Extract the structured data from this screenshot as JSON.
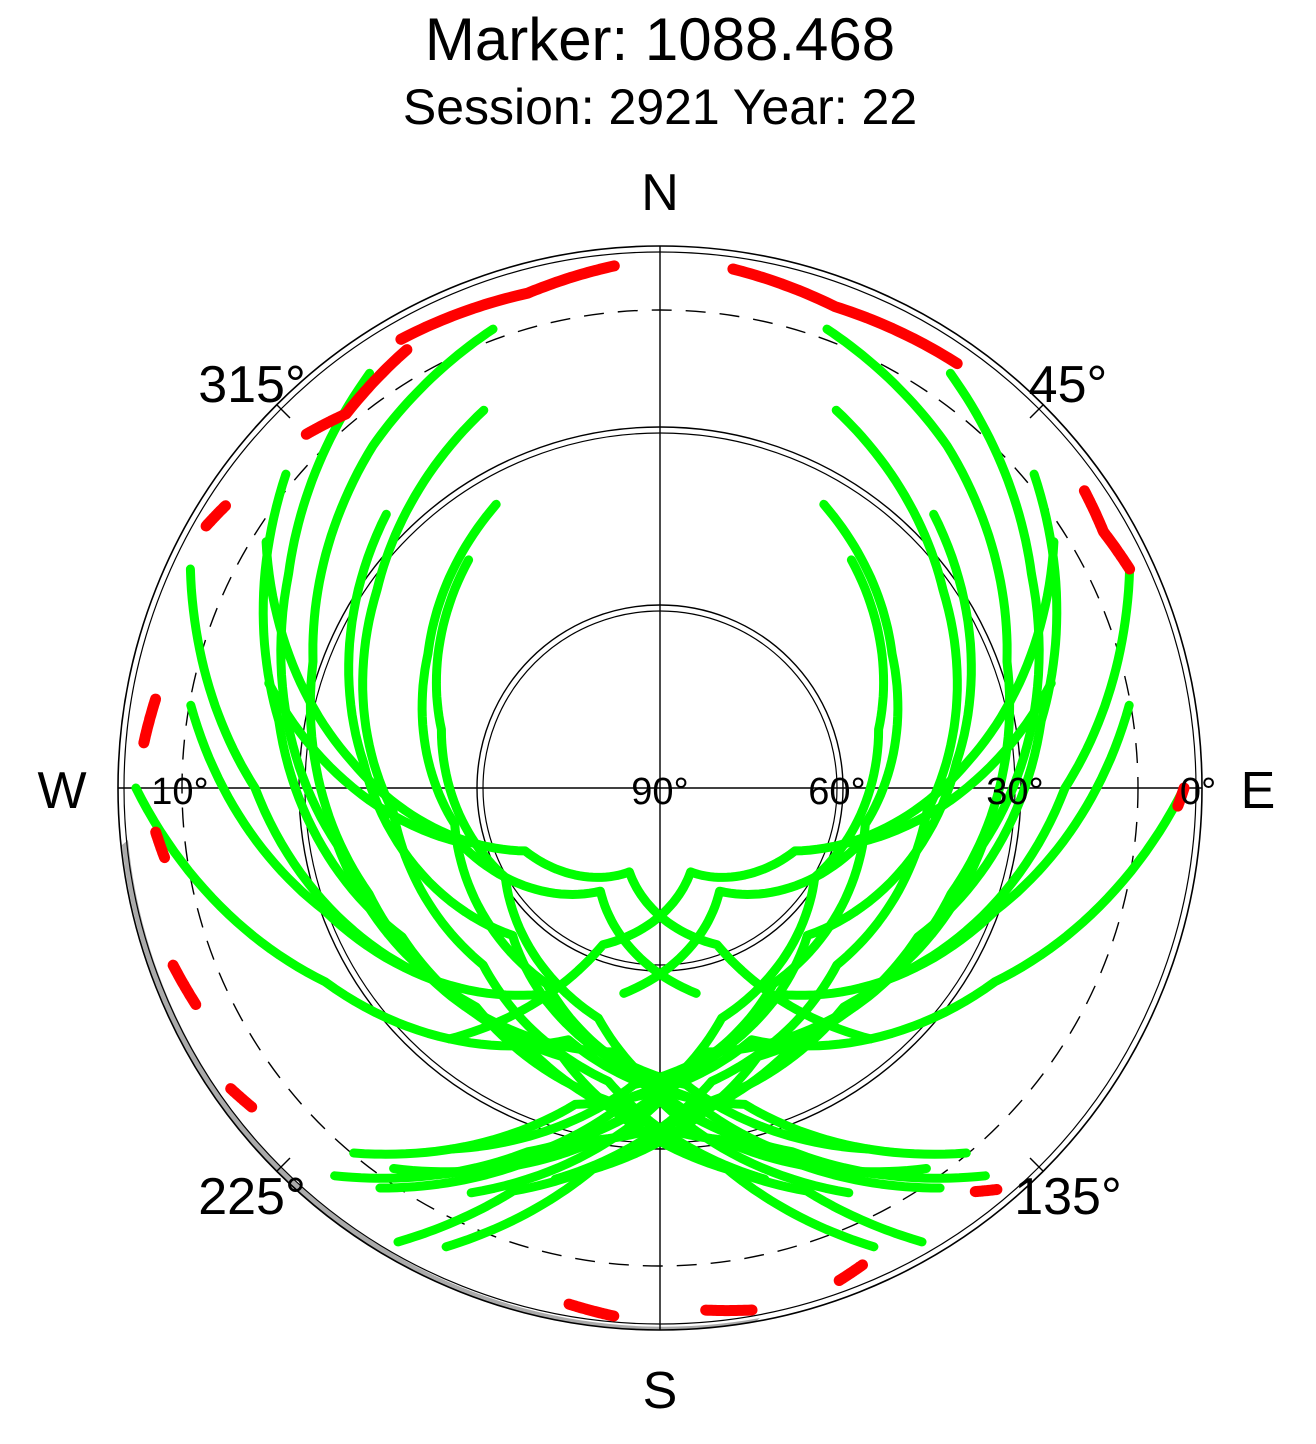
{
  "title": "Marker: 1088.468",
  "subtitle": "Session: 2921 Year: 22",
  "colors": {
    "track_ok": "#00ff00",
    "track_flagged": "#ff0000",
    "grid": "#000000",
    "horizon_mask": "#aaaaaa"
  },
  "chart_data": {
    "type": "scatter",
    "projection": "polar-skyplot",
    "compass_labels": {
      "north": "N",
      "south": "S",
      "west": "W",
      "east": "E"
    },
    "azimuth_labels": [
      "45°",
      "135°",
      "225°",
      "315°"
    ],
    "elevation_labels": [
      "0°",
      "10°",
      "30°",
      "60°",
      "90°"
    ],
    "elevation_rings_deg": [
      0,
      30,
      60
    ],
    "elevation_cutoff_deg": 10,
    "series": [
      {
        "color_key": "track_ok",
        "tracks": [
          [
            [
              20,
              8
            ],
            [
              40,
              15
            ],
            [
              70,
              28
            ],
            [
              110,
              38
            ],
            [
              150,
              42
            ],
            [
              190,
              30
            ],
            [
              215,
              12
            ]
          ],
          [
            [
              35,
              5
            ],
            [
              60,
              18
            ],
            [
              100,
              35
            ],
            [
              140,
              42
            ],
            [
              175,
              36
            ],
            [
              200,
              18
            ],
            [
              210,
              2
            ]
          ],
          [
            [
              50,
              8
            ],
            [
              80,
              25
            ],
            [
              120,
              40
            ],
            [
              160,
              42
            ],
            [
              190,
              25
            ],
            [
              205,
              5
            ]
          ],
          [
            [
              25,
              20
            ],
            [
              55,
              32
            ],
            [
              95,
              45
            ],
            [
              135,
              48
            ],
            [
              170,
              40
            ],
            [
              195,
              22
            ]
          ],
          [
            [
              65,
              3
            ],
            [
              90,
              22
            ],
            [
              130,
              40
            ],
            [
              170,
              45
            ],
            [
              200,
              25
            ],
            [
              220,
              5
            ]
          ],
          [
            [
              30,
              35
            ],
            [
              60,
              45
            ],
            [
              100,
              55
            ],
            [
              150,
              52
            ],
            [
              185,
              38
            ],
            [
              210,
              15
            ]
          ],
          [
            [
              40,
              40
            ],
            [
              75,
              52
            ],
            [
              120,
              60
            ],
            [
              165,
              50
            ],
            [
              195,
              28
            ],
            [
              215,
              8
            ]
          ],
          [
            [
              45,
              25
            ],
            [
              85,
              40
            ],
            [
              135,
              55
            ],
            [
              175,
              42
            ],
            [
              205,
              15
            ]
          ],
          [
            [
              80,
              10
            ],
            [
              110,
              30
            ],
            [
              150,
              50
            ],
            [
              185,
              40
            ],
            [
              210,
              20
            ]
          ],
          [
            [
              90,
              2
            ],
            [
              120,
              25
            ],
            [
              160,
              45
            ],
            [
              195,
              35
            ],
            [
              220,
              10
            ]
          ],
          [
            [
              340,
              8
            ],
            [
              320,
              15
            ],
            [
              290,
              28
            ],
            [
              250,
              38
            ],
            [
              210,
              42
            ],
            [
              170,
              30
            ],
            [
              145,
              12
            ]
          ],
          [
            [
              325,
              5
            ],
            [
              300,
              18
            ],
            [
              260,
              35
            ],
            [
              220,
              42
            ],
            [
              185,
              36
            ],
            [
              160,
              18
            ],
            [
              150,
              2
            ]
          ],
          [
            [
              310,
              8
            ],
            [
              280,
              25
            ],
            [
              240,
              40
            ],
            [
              200,
              42
            ],
            [
              170,
              25
            ],
            [
              155,
              5
            ]
          ],
          [
            [
              335,
              20
            ],
            [
              305,
              32
            ],
            [
              265,
              45
            ],
            [
              225,
              48
            ],
            [
              190,
              40
            ],
            [
              165,
              22
            ]
          ],
          [
            [
              295,
              3
            ],
            [
              270,
              22
            ],
            [
              230,
              40
            ],
            [
              190,
              45
            ],
            [
              160,
              25
            ],
            [
              140,
              5
            ]
          ],
          [
            [
              330,
              35
            ],
            [
              300,
              45
            ],
            [
              260,
              55
            ],
            [
              210,
              52
            ],
            [
              175,
              38
            ],
            [
              150,
              15
            ]
          ],
          [
            [
              320,
              40
            ],
            [
              285,
              52
            ],
            [
              240,
              60
            ],
            [
              195,
              50
            ],
            [
              165,
              28
            ],
            [
              145,
              8
            ]
          ],
          [
            [
              315,
              25
            ],
            [
              275,
              40
            ],
            [
              225,
              55
            ],
            [
              185,
              42
            ],
            [
              155,
              15
            ]
          ],
          [
            [
              280,
              10
            ],
            [
              250,
              30
            ],
            [
              210,
              50
            ],
            [
              175,
              40
            ],
            [
              150,
              20
            ]
          ],
          [
            [
              270,
              2
            ],
            [
              240,
              25
            ],
            [
              200,
              45
            ],
            [
              165,
              35
            ],
            [
              140,
              10
            ]
          ],
          [
            [
              58,
              12
            ],
            [
              85,
              38
            ],
            [
              115,
              65
            ],
            [
              160,
              75
            ],
            [
              200,
              62
            ],
            [
              220,
              35
            ]
          ],
          [
            [
              302,
              12
            ],
            [
              275,
              38
            ],
            [
              245,
              65
            ],
            [
              200,
              75
            ],
            [
              160,
              62
            ],
            [
              140,
              35
            ]
          ],
          [
            [
              75,
              22
            ],
            [
              105,
              55
            ],
            [
              150,
              70
            ],
            [
              190,
              55
            ]
          ],
          [
            [
              285,
              22
            ],
            [
              255,
              55
            ],
            [
              210,
              70
            ],
            [
              170,
              55
            ]
          ]
        ]
      },
      {
        "color_key": "track_flagged",
        "tracks": [
          [
            [
              8,
              2
            ],
            [
              20,
              4
            ],
            [
              35,
              3
            ]
          ],
          [
            [
              330,
              3
            ],
            [
              345,
              4
            ],
            [
              355,
              2
            ]
          ],
          [
            [
              315,
              6
            ],
            [
              320,
              8
            ],
            [
              330,
              5
            ]
          ],
          [
            [
              55,
              3
            ],
            [
              60,
              4
            ],
            [
              65,
              3
            ]
          ],
          [
            [
              275,
              3
            ],
            [
              280,
              4
            ]
          ],
          [
            [
              250,
              3
            ],
            [
              245,
              4
            ]
          ],
          [
            [
              235,
              2
            ],
            [
              232,
              3
            ]
          ],
          [
            [
              140,
              2
            ],
            [
              142,
              4
            ]
          ],
          [
            [
              170,
              1
            ],
            [
              175,
              2
            ]
          ],
          [
            [
              185,
              1
            ],
            [
              190,
              2
            ]
          ],
          [
            [
              160,
              2
            ],
            [
              157,
              3
            ]
          ],
          [
            [
              90,
              2
            ],
            [
              92,
              3
            ]
          ],
          [
            [
              265,
              5
            ],
            [
              262,
              6
            ]
          ],
          [
            [
              300,
              2
            ],
            [
              303,
              3
            ]
          ]
        ]
      }
    ]
  }
}
